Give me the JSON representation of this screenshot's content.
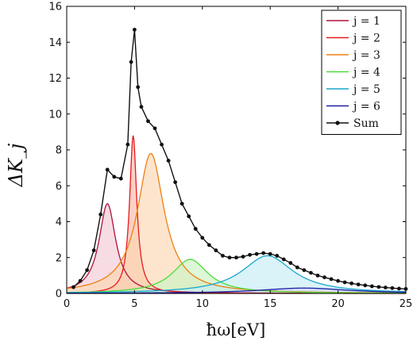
{
  "chart_data": {
    "type": "area",
    "title": "",
    "xlabel": "ħω[eV]",
    "ylabel": "ΔK_j",
    "xlim": [
      0,
      25
    ],
    "ylim": [
      0,
      16
    ],
    "xticks": [
      0,
      5,
      10,
      15,
      20,
      25
    ],
    "yticks": [
      0,
      2,
      4,
      6,
      8,
      10,
      12,
      14,
      16
    ],
    "grid": false,
    "legend_position": "top-right",
    "series": [
      {
        "name": "j = 1",
        "color": "#b0103a",
        "fill": "#f3c9d4",
        "peaks": [
          {
            "x": 3.0,
            "y": 5.0,
            "gamma": 0.75
          }
        ]
      },
      {
        "name": "j = 2",
        "color": "#e8191e",
        "fill": "#f9b9a6",
        "peaks": [
          {
            "x": 4.9,
            "y": 8.8,
            "gamma": 0.32
          }
        ]
      },
      {
        "name": "j = 3",
        "color": "#ef7f12",
        "fill": "#fcd7b2",
        "peaks": [
          {
            "x": 6.2,
            "y": 7.8,
            "gamma": 1.2
          }
        ]
      },
      {
        "name": "j = 4",
        "color": "#4cdc3b",
        "fill": "#cbf5c2",
        "peaks": [
          {
            "x": 9.1,
            "y": 1.9,
            "gamma": 1.6
          }
        ]
      },
      {
        "name": "j = 5",
        "color": "#1aa7cc",
        "fill": "#c4ecf5",
        "peaks": [
          {
            "x": 14.8,
            "y": 2.1,
            "gamma": 2.3
          }
        ]
      },
      {
        "name": "j = 6",
        "color": "#1b1fa6",
        "fill": "#d2d3f3",
        "peaks": [
          {
            "x": 17.5,
            "y": 0.3,
            "gamma": 4.0
          }
        ]
      }
    ],
    "sum": {
      "name": "Sum",
      "color": "#111111",
      "x": [
        0.5,
        1.0,
        1.5,
        2.0,
        2.5,
        3.0,
        3.5,
        4.0,
        4.5,
        4.75,
        5.0,
        5.25,
        5.5,
        6.0,
        6.5,
        7.0,
        7.5,
        8.0,
        8.5,
        9.0,
        9.5,
        10.0,
        10.5,
        11.0,
        11.5,
        12.0,
        12.5,
        13.0,
        13.5,
        14.0,
        14.5,
        15.0,
        15.5,
        16.0,
        16.5,
        17.0,
        17.5,
        18.0,
        18.5,
        19.0,
        19.5,
        20.0,
        20.5,
        21.0,
        21.5,
        22.0,
        22.5,
        23.0,
        23.5,
        24.0,
        24.5,
        25.0
      ],
      "y": [
        0.35,
        0.7,
        1.3,
        2.4,
        4.4,
        6.9,
        6.5,
        6.4,
        8.3,
        12.9,
        14.7,
        11.5,
        10.4,
        9.6,
        9.2,
        8.3,
        7.4,
        6.2,
        5.0,
        4.3,
        3.6,
        3.1,
        2.7,
        2.4,
        2.1,
        2.0,
        2.0,
        2.05,
        2.15,
        2.2,
        2.25,
        2.2,
        2.1,
        1.9,
        1.7,
        1.45,
        1.3,
        1.15,
        1.0,
        0.9,
        0.8,
        0.7,
        0.62,
        0.56,
        0.5,
        0.45,
        0.4,
        0.36,
        0.33,
        0.3,
        0.27,
        0.25
      ]
    }
  }
}
